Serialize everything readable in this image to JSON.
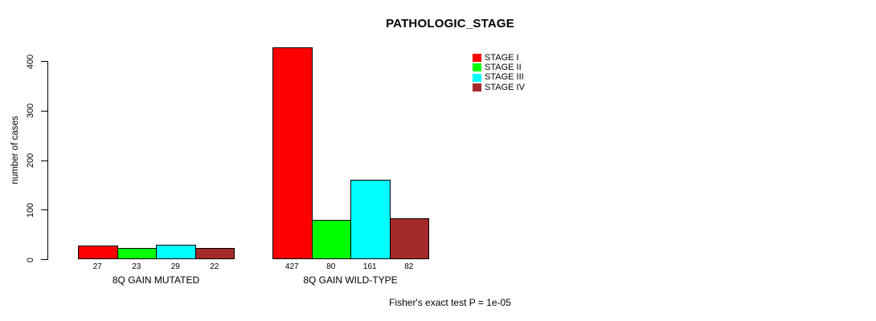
{
  "chart_data": {
    "type": "bar",
    "title": "PATHOLOGIC_STAGE",
    "xlabel": "",
    "ylabel": "number of cases",
    "categories": [
      "8Q GAIN MUTATED",
      "8Q GAIN WILD-TYPE"
    ],
    "series": [
      {
        "name": "STAGE I",
        "color": "#ff0000",
        "values": [
          27,
          427
        ]
      },
      {
        "name": "STAGE II",
        "color": "#00ff00",
        "values": [
          23,
          80
        ]
      },
      {
        "name": "STAGE III",
        "color": "#00ffff",
        "values": [
          29,
          161
        ]
      },
      {
        "name": "STAGE IV",
        "color": "#a52a2a",
        "values": [
          22,
          82
        ]
      }
    ],
    "legend_entries": [
      "STAGE I",
      "STAGE II",
      "STAGE III",
      "STAGE IV"
    ],
    "legend_position": "top-right",
    "yticks": [
      0,
      100,
      200,
      300,
      400
    ],
    "ylim": [
      0,
      430
    ],
    "grid": false,
    "bar_value_labels_shown": true,
    "annotation": "Fisher's exact test P = 1e-05"
  }
}
